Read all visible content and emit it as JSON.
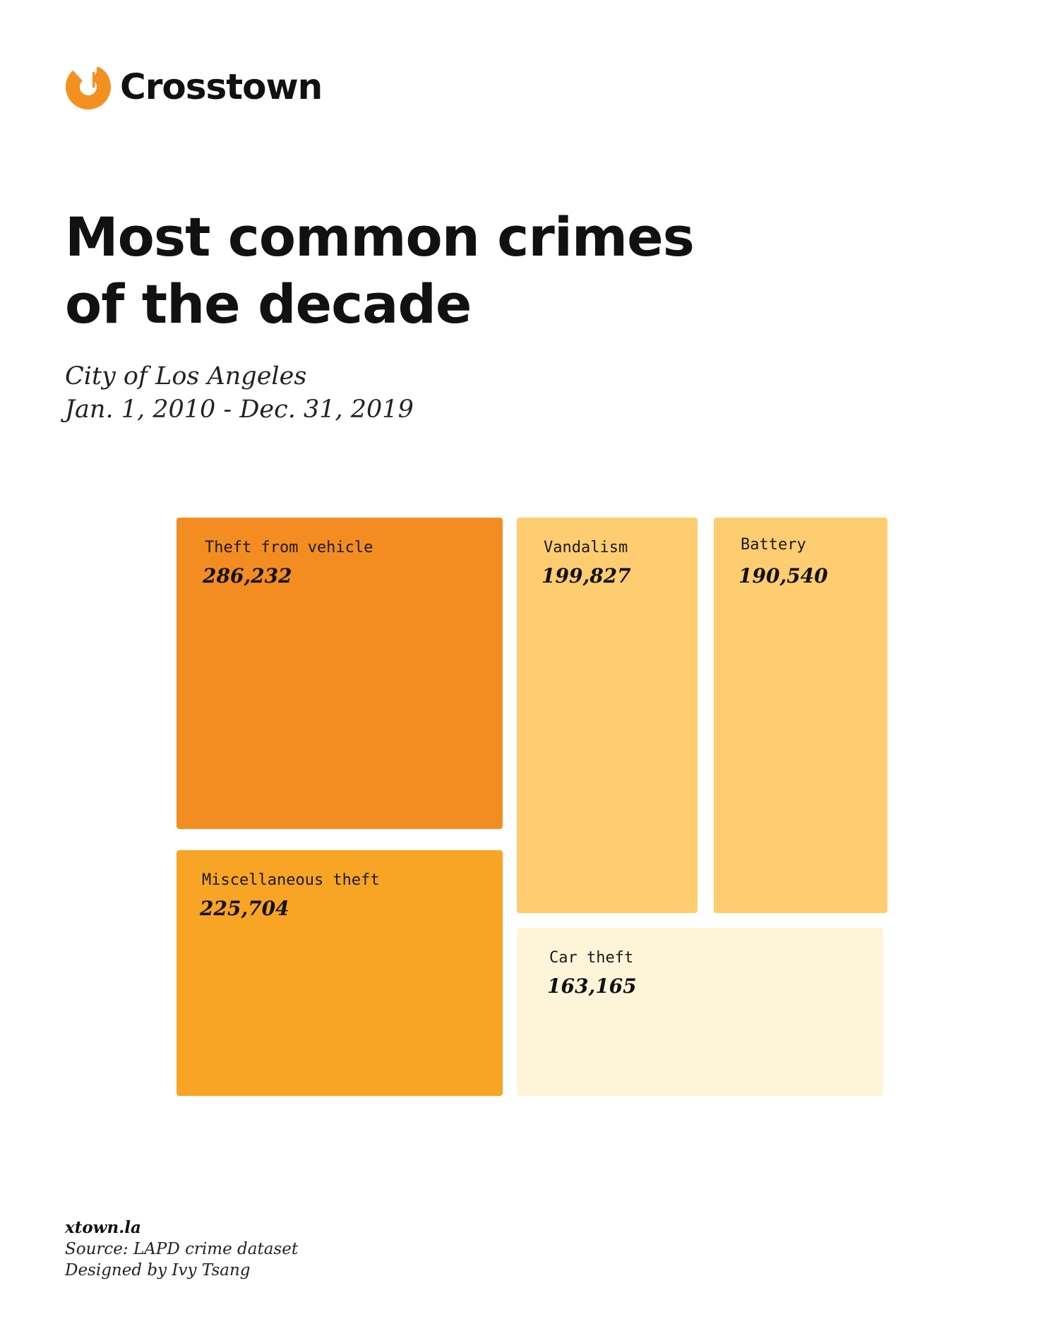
{
  "brand": {
    "name": "Crosstown",
    "accent_color": "#F39120",
    "logo_icon": "crosstown-logo-icon"
  },
  "title": {
    "line1": "Most common crimes",
    "line2": "of the decade"
  },
  "subtitle": {
    "line1": "City of Los Angeles",
    "line2": "Jan. 1, 2010 - Dec. 31, 2019"
  },
  "chart_data": {
    "type": "treemap",
    "title": "Most common crimes of the decade",
    "items": [
      {
        "name": "Theft from vehicle",
        "value": 286232,
        "value_label": "286,232",
        "color": "#F48D21"
      },
      {
        "name": "Vandalism",
        "value": 199827,
        "value_label": "199,827",
        "color": "#FECD72"
      },
      {
        "name": "Battery",
        "value": 190540,
        "value_label": "190,540",
        "color": "#FECD72"
      },
      {
        "name": "Miscellaneous theft",
        "value": 225704,
        "value_label": "225,704",
        "color": "#F8A424"
      },
      {
        "name": "Car theft",
        "value": 163165,
        "value_label": "163,165",
        "color": "#FEF5D9"
      }
    ]
  },
  "footer": {
    "site": "xtown.la",
    "source": "Source: LAPD crime dataset",
    "credit": "Designed by Ivy Tsang"
  }
}
